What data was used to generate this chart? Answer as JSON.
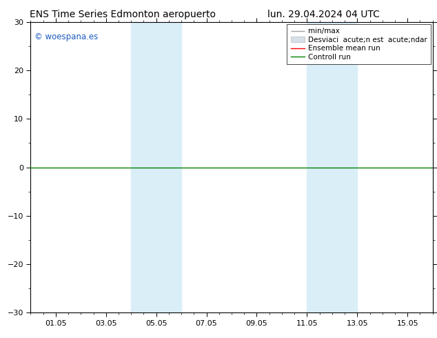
{
  "title_left": "ENS Time Series Edmonton aeropuerto",
  "title_right": "lun. 29.04.2024 04 UTC",
  "watermark": "© woespana.es",
  "ylim": [
    -30,
    30
  ],
  "yticks": [
    -30,
    -20,
    -10,
    0,
    10,
    20,
    30
  ],
  "xtick_labels": [
    "01.05",
    "03.05",
    "05.05",
    "07.05",
    "09.05",
    "11.05",
    "13.05",
    "15.05"
  ],
  "xtick_positions": [
    2,
    6,
    10,
    14,
    18,
    22,
    26,
    30
  ],
  "xlim": [
    0,
    32
  ],
  "shaded_bands": [
    {
      "x_start": 8.0,
      "x_end": 12.0
    },
    {
      "x_start": 22.0,
      "x_end": 26.0
    }
  ],
  "shade_color": "#daeef8",
  "bg_color": "#ffffff",
  "plot_bg_color": "#ffffff",
  "zero_line_color": "#008000",
  "legend_label_minmax": "min/max",
  "legend_label_std": "Desviaci  acute;n est  acute;ndar",
  "legend_label_ensemble": "Ensemble mean run",
  "legend_label_control": "Controll run",
  "minmax_color": "#a0a0a0",
  "std_color": "#d0d8e0",
  "ensemble_color": "#ff0000",
  "control_color": "#008000",
  "font_size_title": 10,
  "font_size_ticks": 8,
  "font_size_legend": 7.5,
  "font_size_watermark": 8.5,
  "watermark_color": "#1a5bbf",
  "tick_color": "#000000"
}
